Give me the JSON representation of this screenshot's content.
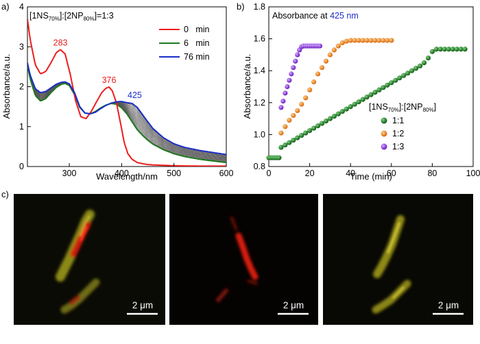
{
  "panel_labels": {
    "a": "a)",
    "b": "b)",
    "c": "c)"
  },
  "chart_data": [
    {
      "type": "line",
      "id": "a",
      "title_prefix": "[1NS",
      "title_sub1": "70%",
      "title_mid": "]:[2NP",
      "title_sub2": "80%",
      "title_suffix": "]=1:3",
      "xlabel": "Wavelength/nm",
      "ylabel": "Absorbance/a.u.",
      "xlim": [
        220,
        600
      ],
      "ylim": [
        0,
        4
      ],
      "xticks": [
        300,
        400,
        500,
        600
      ],
      "yticks": [
        0,
        1,
        2,
        3,
        4
      ],
      "legend": [
        "0   min",
        "6   min",
        "76 min"
      ],
      "legend_colors": [
        "#ee1c1c",
        "#1f7a1f",
        "#1a2ec8"
      ],
      "peak_labels": [
        {
          "text": "283",
          "x": 283,
          "y": 2.93,
          "color": "#ee1c1c"
        },
        {
          "text": "376",
          "x": 376,
          "y": 1.99,
          "color": "#ee1c1c"
        },
        {
          "text": "425",
          "x": 425,
          "y": 1.61,
          "color": "#1a2ec8"
        }
      ],
      "intermediate_count": 13,
      "intermediate_color": "#555555",
      "series": [
        {
          "name": "0 min",
          "color": "#ee1c1c",
          "x": [
            220,
            225,
            235,
            245,
            255,
            265,
            275,
            283,
            292,
            302,
            312,
            322,
            332,
            342,
            352,
            362,
            370,
            376,
            382,
            390,
            398,
            405,
            412,
            420,
            430,
            440,
            450,
            460,
            480,
            500,
            550,
            600
          ],
          "y": [
            3.7,
            3.2,
            2.55,
            2.32,
            2.38,
            2.6,
            2.85,
            2.93,
            2.82,
            2.3,
            1.65,
            1.25,
            1.2,
            1.38,
            1.62,
            1.85,
            1.96,
            1.99,
            1.9,
            1.6,
            1.08,
            0.6,
            0.32,
            0.18,
            0.1,
            0.07,
            0.05,
            0.04,
            0.03,
            0.02,
            0.01,
            0.01
          ]
        },
        {
          "name": "6 min",
          "color": "#1f7a1f",
          "x": [
            220,
            225,
            235,
            245,
            255,
            265,
            275,
            285,
            292,
            300,
            310,
            320,
            330,
            340,
            350,
            360,
            370,
            380,
            390,
            400,
            410,
            420,
            430,
            440,
            450,
            460,
            480,
            500,
            520,
            550,
            580,
            600
          ],
          "y": [
            2.55,
            2.2,
            1.78,
            1.64,
            1.7,
            1.85,
            1.98,
            2.06,
            2.08,
            2.03,
            1.8,
            1.48,
            1.34,
            1.32,
            1.38,
            1.47,
            1.54,
            1.58,
            1.56,
            1.47,
            1.32,
            1.12,
            0.92,
            0.78,
            0.66,
            0.56,
            0.42,
            0.32,
            0.25,
            0.18,
            0.13,
            0.1
          ]
        },
        {
          "name": "76 min",
          "color": "#1a2ec8",
          "x": [
            220,
            225,
            235,
            245,
            255,
            265,
            275,
            285,
            292,
            300,
            310,
            320,
            330,
            340,
            350,
            360,
            370,
            380,
            390,
            400,
            410,
            420,
            430,
            440,
            450,
            460,
            480,
            500,
            520,
            550,
            580,
            600
          ],
          "y": [
            2.6,
            2.3,
            1.95,
            1.85,
            1.88,
            1.97,
            2.06,
            2.11,
            2.12,
            2.07,
            1.85,
            1.5,
            1.34,
            1.32,
            1.36,
            1.45,
            1.53,
            1.59,
            1.62,
            1.63,
            1.6,
            1.58,
            1.48,
            1.3,
            1.12,
            0.95,
            0.72,
            0.57,
            0.48,
            0.4,
            0.34,
            0.3
          ]
        }
      ]
    },
    {
      "type": "scatter",
      "id": "b",
      "title_main": "Absorbance at ",
      "title_highlight": "425 nm",
      "title_highlight_color": "#1a2ec8",
      "xlabel": "Time (min)",
      "ylabel": "Absorbance/a.u.",
      "xlim": [
        0,
        100
      ],
      "ylim": [
        0.8,
        1.8
      ],
      "xticks": [
        0,
        20,
        40,
        60,
        80,
        100
      ],
      "yticks": [
        0.8,
        1.0,
        1.2,
        1.4,
        1.6,
        1.8
      ],
      "legend_title_prefix": "[1NS",
      "legend_title_sub1": "70%",
      "legend_title_mid": "]:[2NP",
      "legend_title_sub2": "80%",
      "legend_title_suffix": "]",
      "series": [
        {
          "name": "1:1",
          "color": "#1f8a2a",
          "gradient": [
            "#7fd37f",
            "#0c5a12"
          ],
          "x": [
            0,
            1,
            2,
            3,
            4,
            5,
            6,
            8,
            10,
            12,
            14,
            16,
            18,
            20,
            22,
            24,
            26,
            28,
            30,
            32,
            34,
            36,
            38,
            40,
            42,
            44,
            46,
            48,
            50,
            52,
            54,
            56,
            58,
            60,
            62,
            64,
            66,
            68,
            70,
            72,
            74,
            76,
            78,
            80,
            82,
            84,
            86,
            88,
            90,
            92,
            94,
            96
          ],
          "y": [
            0.855,
            0.855,
            0.855,
            0.855,
            0.855,
            0.855,
            0.92,
            0.935,
            0.95,
            0.965,
            0.98,
            0.995,
            1.01,
            1.025,
            1.04,
            1.055,
            1.07,
            1.085,
            1.1,
            1.115,
            1.13,
            1.145,
            1.16,
            1.175,
            1.19,
            1.205,
            1.22,
            1.235,
            1.25,
            1.265,
            1.28,
            1.295,
            1.31,
            1.325,
            1.34,
            1.355,
            1.37,
            1.385,
            1.4,
            1.415,
            1.43,
            1.45,
            1.48,
            1.52,
            1.535,
            1.535,
            1.535,
            1.535,
            1.535,
            1.535,
            1.535,
            1.535
          ]
        },
        {
          "name": "1:2",
          "color": "#f08a24",
          "gradient": [
            "#ffd08a",
            "#d8670c"
          ],
          "x": [
            6,
            8,
            10,
            12,
            14,
            16,
            18,
            20,
            22,
            24,
            26,
            28,
            30,
            32,
            34,
            36,
            38,
            40,
            42,
            44,
            46,
            48,
            50,
            52,
            54,
            56,
            58,
            60
          ],
          "y": [
            1.01,
            1.05,
            1.09,
            1.12,
            1.15,
            1.19,
            1.23,
            1.28,
            1.33,
            1.38,
            1.42,
            1.46,
            1.5,
            1.53,
            1.555,
            1.575,
            1.585,
            1.59,
            1.59,
            1.59,
            1.59,
            1.59,
            1.59,
            1.59,
            1.59,
            1.59,
            1.59,
            1.59
          ]
        },
        {
          "name": "1:3",
          "color": "#8a35d8",
          "gradient": [
            "#d4a8ff",
            "#6a1cc0"
          ],
          "x": [
            6,
            7,
            8,
            9,
            10,
            11,
            12,
            13,
            14,
            15,
            16,
            17,
            18,
            19,
            20,
            21,
            22,
            23,
            24,
            25
          ],
          "y": [
            1.17,
            1.21,
            1.26,
            1.3,
            1.34,
            1.38,
            1.42,
            1.46,
            1.5,
            1.53,
            1.55,
            1.555,
            1.555,
            1.555,
            1.555,
            1.555,
            1.555,
            1.555,
            1.555,
            1.555
          ]
        }
      ]
    }
  ],
  "micrographs": [
    {
      "scalebar": "2 μm",
      "channels": "merged"
    },
    {
      "scalebar": "2 μm",
      "channels": "red"
    },
    {
      "scalebar": "2 μm",
      "channels": "yellow"
    }
  ]
}
